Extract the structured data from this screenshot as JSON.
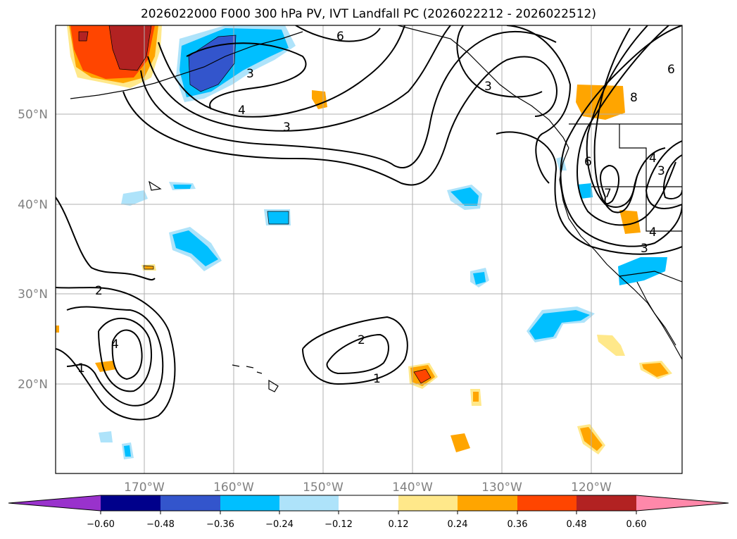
{
  "title": "2026022000 F000 300 hPa PV, IVT Landfall PC (2026022212 - 2026022512)",
  "map": {
    "lat_labels": [
      "50°N",
      "40°N",
      "30°N",
      "20°N"
    ],
    "lon_labels": [
      "170°W",
      "160°W",
      "150°W",
      "140°W",
      "130°W",
      "120°W"
    ],
    "contour_labels": [
      "6",
      "3",
      "4",
      "3",
      "2",
      "1",
      "4",
      "2",
      "1",
      "8",
      "6",
      "7",
      "4",
      "3",
      "4",
      "3",
      "3",
      "6"
    ]
  },
  "colorbar": {
    "ticks": [
      "−0.60",
      "−0.48",
      "−0.36",
      "−0.24",
      "−0.12",
      "0.12",
      "0.24",
      "0.36",
      "0.48",
      "0.60"
    ],
    "colors": {
      "under": "#9932cc",
      "c1": "#00008b",
      "c2": "#3355cc",
      "c3": "#00bfff",
      "c4": "#aee3fa",
      "c5": "#ffffff",
      "c6": "#ffe88a",
      "c7": "#ffa500",
      "c8": "#ff4500",
      "c9": "#b22222",
      "over": "#ff88aa"
    }
  }
}
